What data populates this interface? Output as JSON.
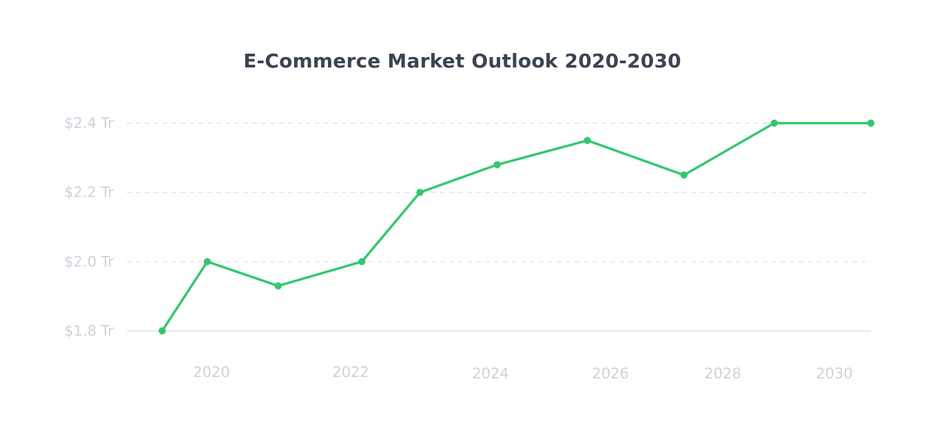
{
  "chart_data": {
    "type": "line",
    "title": "E-Commerce Market Outlook 2020-2030",
    "xlabel": "",
    "ylabel": "",
    "x": [
      2019.6,
      2020.3,
      2021.4,
      2022.7,
      2023.6,
      2024.8,
      2026.2,
      2027.7,
      2029.1,
      2030.6
    ],
    "series": [
      {
        "values": [
          1.8,
          2.0,
          1.93,
          2.0,
          2.2,
          2.28,
          2.35,
          2.25,
          2.4,
          2.4
        ]
      }
    ],
    "xlim": [
      2019.05,
      2030.6
    ],
    "ylim": [
      1.8,
      2.4
    ],
    "x_ticks": [
      {
        "value": 2020,
        "label": "2020"
      },
      {
        "value": 2022,
        "label": "2022"
      },
      {
        "value": 2024,
        "label": "2024"
      },
      {
        "value": 2026,
        "label": "2026"
      },
      {
        "value": 2028,
        "label": "2028"
      },
      {
        "value": 2030,
        "label": "2030"
      }
    ],
    "y_ticks": [
      {
        "value": 1.8,
        "label": "$1.8 Tr"
      },
      {
        "value": 2.0,
        "label": "$2.0 Tr"
      },
      {
        "value": 2.2,
        "label": "$2.2 Tr"
      },
      {
        "value": 2.4,
        "label": "$2.4 Tr"
      }
    ],
    "grid": true,
    "legend": "none",
    "colors": {
      "line": "#35c770",
      "grid": "#dfe2e7",
      "axis": "#dfe2e7",
      "tick_text": "#cdd2da",
      "title": "#3b4452"
    }
  }
}
